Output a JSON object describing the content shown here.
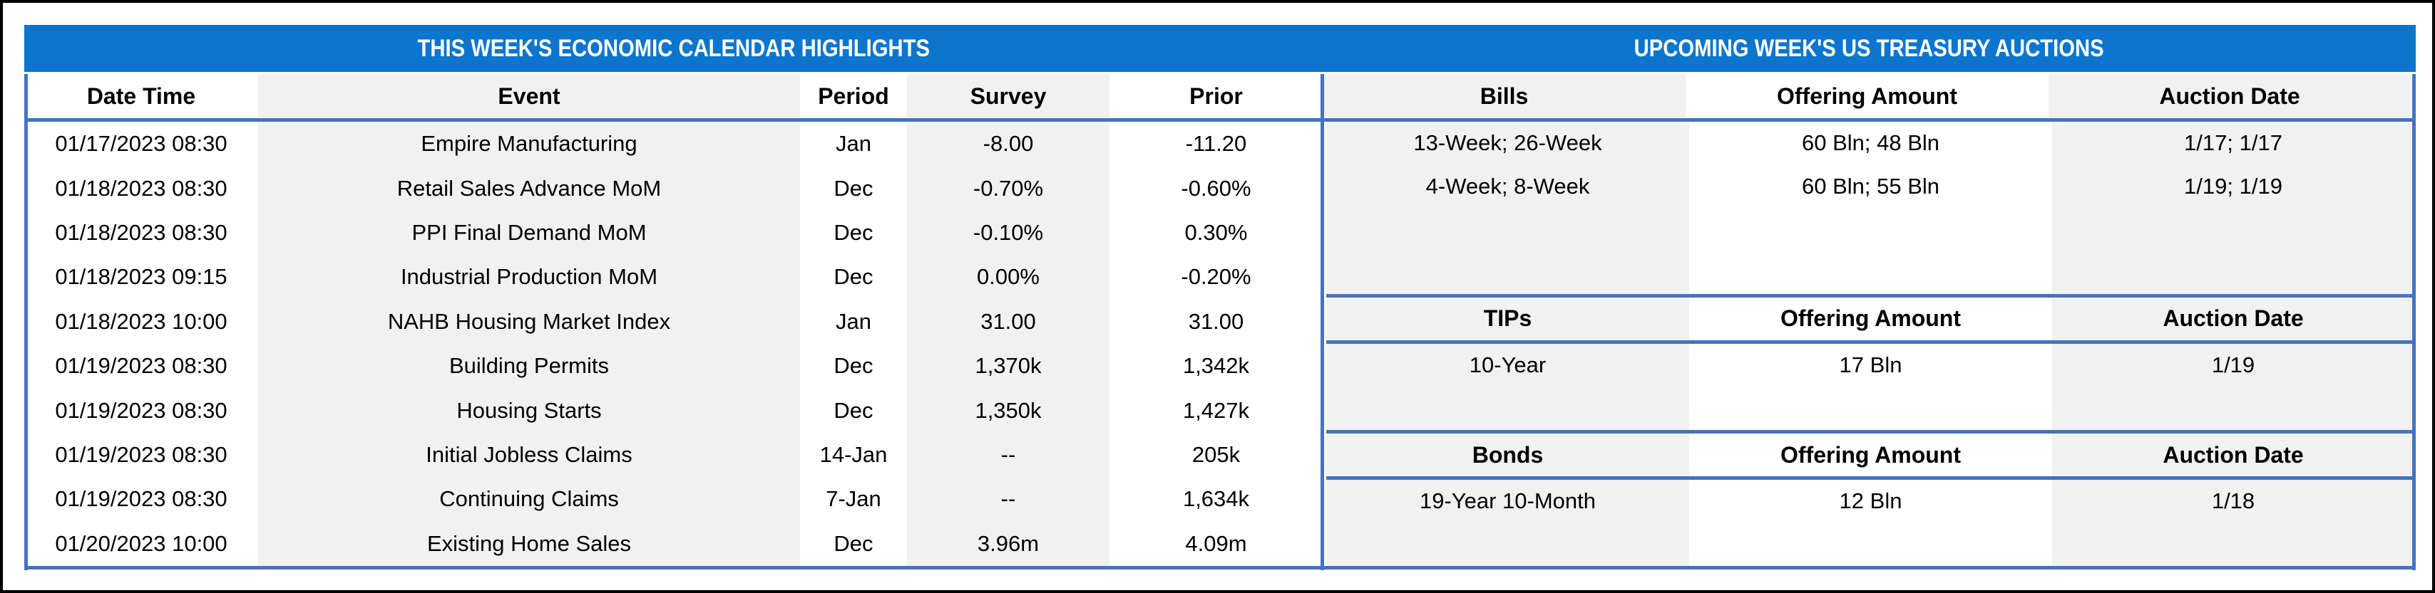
{
  "titles": {
    "left": "THIS WEEK'S ECONOMIC CALENDAR HIGHLIGHTS",
    "right": "UPCOMING WEEK'S US TREASURY AUCTIONS"
  },
  "calendar": {
    "columns": [
      "Date Time",
      "Event",
      "Period",
      "Survey",
      "Prior"
    ],
    "rows": [
      [
        "01/17/2023 08:30",
        "Empire Manufacturing",
        "Jan",
        "-8.00",
        "-11.20"
      ],
      [
        "01/18/2023 08:30",
        "Retail Sales Advance MoM",
        "Dec",
        "-0.70%",
        "-0.60%"
      ],
      [
        "01/18/2023 08:30",
        "PPI Final Demand MoM",
        "Dec",
        "-0.10%",
        "0.30%"
      ],
      [
        "01/18/2023 09:15",
        "Industrial Production MoM",
        "Dec",
        "0.00%",
        "-0.20%"
      ],
      [
        "01/18/2023 10:00",
        "NAHB Housing Market Index",
        "Jan",
        "31.00",
        "31.00"
      ],
      [
        "01/19/2023 08:30",
        "Building Permits",
        "Dec",
        "1,370k",
        "1,342k"
      ],
      [
        "01/19/2023 08:30",
        "Housing Starts",
        "Dec",
        "1,350k",
        "1,427k"
      ],
      [
        "01/19/2023 08:30",
        "Initial Jobless Claims",
        "14-Jan",
        "--",
        "205k"
      ],
      [
        "01/19/2023 08:30",
        "Continuing Claims",
        "7-Jan",
        "--",
        "1,634k"
      ],
      [
        "01/20/2023 10:00",
        "Existing Home Sales",
        "Dec",
        "3.96m",
        "4.09m"
      ]
    ]
  },
  "auctions": {
    "sections": [
      {
        "header": [
          "Bills",
          "Offering Amount",
          "Auction Date"
        ],
        "rows": [
          [
            "13-Week; 26-Week",
            "60 Bln; 48 Bln",
            "1/17; 1/17"
          ],
          [
            "4-Week; 8-Week",
            "60 Bln; 55 Bln",
            "1/19; 1/19"
          ]
        ]
      },
      {
        "header": [
          "TIPs",
          "Offering Amount",
          "Auction Date"
        ],
        "rows": [
          [
            "10-Year",
            "17 Bln",
            "1/19"
          ]
        ]
      },
      {
        "header": [
          "Bonds",
          "Offering Amount",
          "Auction Date"
        ],
        "rows": [
          [
            "19-Year 10-Month",
            "12 Bln",
            "1/18"
          ]
        ]
      }
    ]
  },
  "colors": {
    "band_blue": "#0C76CE",
    "rule_blue": "#4472C4",
    "stripe_gray": "#F1F1F1",
    "frame_black": "#000000",
    "title_text": "#FFFFFF",
    "body_text": "#000000"
  }
}
